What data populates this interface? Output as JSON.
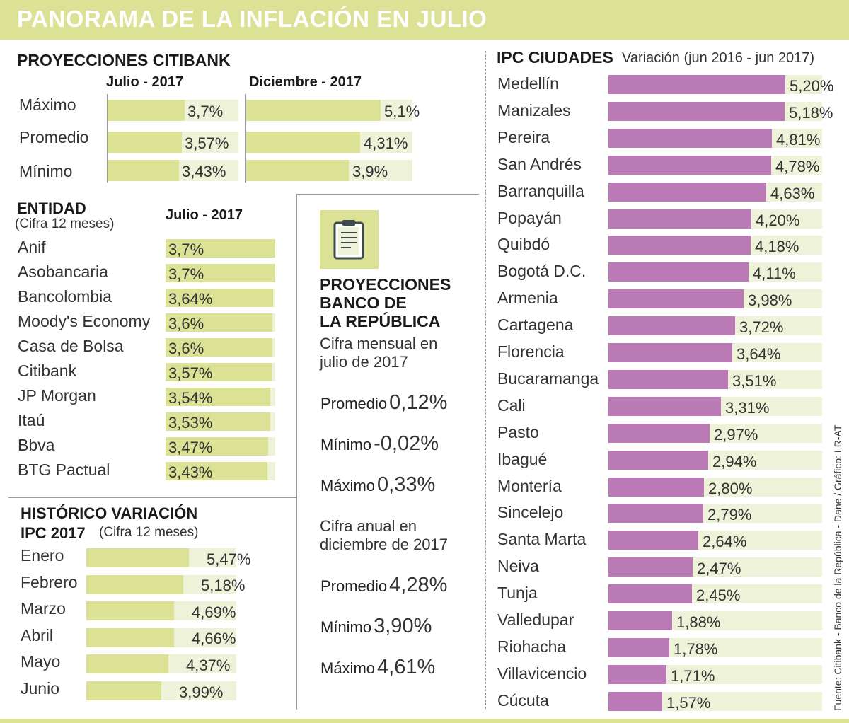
{
  "title": "PANORAMA DE LA INFLACIÓN EN JULIO",
  "source": "Fuente: Citibank - Banco de la República - Dane / Gráfico: LR-AT",
  "colors": {
    "green": "#dbe195",
    "green_track": "#eef2d8",
    "purple": "#b97ab5",
    "header": "#dbe195"
  },
  "citibank": {
    "title": "PROYECCIONES CITIBANK",
    "col_julio": "Julio - 2017",
    "col_diciembre": "Diciembre - 2017",
    "rows": [
      {
        "label": "Máximo",
        "julio": 3.7,
        "julio_text": "3,7%",
        "diciembre": 5.1,
        "diciembre_text": "5,1%"
      },
      {
        "label": "Promedio",
        "julio": 3.57,
        "julio_text": "3,57%",
        "diciembre": 4.31,
        "diciembre_text": "4,31%"
      },
      {
        "label": "Mínimo",
        "julio": 3.43,
        "julio_text": "3,43%",
        "diciembre": 3.9,
        "diciembre_text": "3,9%"
      }
    ]
  },
  "entidad": {
    "title": "ENTIDAD",
    "subtitle": "(Cifra 12 meses)",
    "column": "Julio - 2017",
    "items": [
      {
        "label": "Anif",
        "value": 3.7,
        "text": "3,7%"
      },
      {
        "label": "Asobancaria",
        "value": 3.7,
        "text": "3,7%"
      },
      {
        "label": "Bancolombia",
        "value": 3.64,
        "text": "3,64%"
      },
      {
        "label": "Moody's Economy",
        "value": 3.6,
        "text": "3,6%"
      },
      {
        "label": "Casa de Bolsa",
        "value": 3.6,
        "text": "3,6%"
      },
      {
        "label": "Citibank",
        "value": 3.57,
        "text": "3,57%"
      },
      {
        "label": "JP Morgan",
        "value": 3.54,
        "text": "3,54%"
      },
      {
        "label": "Itaú",
        "value": 3.53,
        "text": "3,53%"
      },
      {
        "label": "Bbva",
        "value": 3.47,
        "text": "3,47%"
      },
      {
        "label": "BTG Pactual",
        "value": 3.43,
        "text": "3,43%"
      }
    ]
  },
  "historico": {
    "title_line1": "HISTÓRICO VARIACIÓN",
    "title_line2": "IPC 2017",
    "subtitle": "(Cifra 12 meses)",
    "items": [
      {
        "label": "Enero",
        "value": 5.47,
        "text": "5,47%"
      },
      {
        "label": "Febrero",
        "value": 5.18,
        "text": "5,18%"
      },
      {
        "label": "Marzo",
        "value": 4.69,
        "text": "4,69%"
      },
      {
        "label": "Abril",
        "value": 4.66,
        "text": "4,66%"
      },
      {
        "label": "Mayo",
        "value": 4.37,
        "text": "4,37%"
      },
      {
        "label": "Junio",
        "value": 3.99,
        "text": "3,99%"
      }
    ]
  },
  "banrep": {
    "icon": "clipboard-icon",
    "title_line1": "PROYECCIONES",
    "title_line2": "BANCO DE",
    "title_line3": "LA REPÚBLICA",
    "mensual_line1": "Cifra mensual en",
    "mensual_line2": "julio de 2017",
    "mensual": [
      {
        "label": "Promedio",
        "value": "0,12%"
      },
      {
        "label": "Mínimo",
        "value": "-0,02%"
      },
      {
        "label": "Máximo",
        "value": "0,33%"
      }
    ],
    "anual_line1": "Cifra anual en",
    "anual_line2": "diciembre de 2017",
    "anual": [
      {
        "label": "Promedio",
        "value": "4,28%"
      },
      {
        "label": "Mínimo",
        "value": "3,90%"
      },
      {
        "label": "Máximo",
        "value": "4,61%"
      }
    ]
  },
  "chart_data": {
    "type": "bar",
    "title": "IPC CIUDADES",
    "subtitle": "Variación (jun 2016 - jun 2017)",
    "unit": "%",
    "categories": [
      "Medellín",
      "Manizales",
      "Pereira",
      "San Andrés",
      "Barranquilla",
      "Popayán",
      "Quibdó",
      "Bogotá D.C.",
      "Armenia",
      "Cartagena",
      "Florencia",
      "Bucaramanga",
      "Cali",
      "Pasto",
      "Ibagué",
      "Montería",
      "Sincelejo",
      "Santa Marta",
      "Neiva",
      "Tunja",
      "Valledupar",
      "Riohacha",
      "Villavicencio",
      "Cúcuta"
    ],
    "values": [
      5.2,
      5.18,
      4.81,
      4.78,
      4.63,
      4.2,
      4.18,
      4.11,
      3.98,
      3.72,
      3.64,
      3.51,
      3.31,
      2.97,
      2.94,
      2.8,
      2.79,
      2.64,
      2.47,
      2.45,
      1.88,
      1.78,
      1.71,
      1.57
    ],
    "labels": [
      "5,20%",
      "5,18%",
      "4,81%",
      "4,78%",
      "4,63%",
      "4,20%",
      "4,18%",
      "4,11%",
      "3,98%",
      "3,72%",
      "3,64%",
      "3,51%",
      "3,31%",
      "2,97%",
      "2,94%",
      "2,80%",
      "2,79%",
      "2,64%",
      "2,47%",
      "2,45%",
      "1,88%",
      "1,78%",
      "1,71%",
      "1,57%"
    ],
    "xlim": [
      0,
      5.5
    ],
    "orientation": "horizontal"
  }
}
